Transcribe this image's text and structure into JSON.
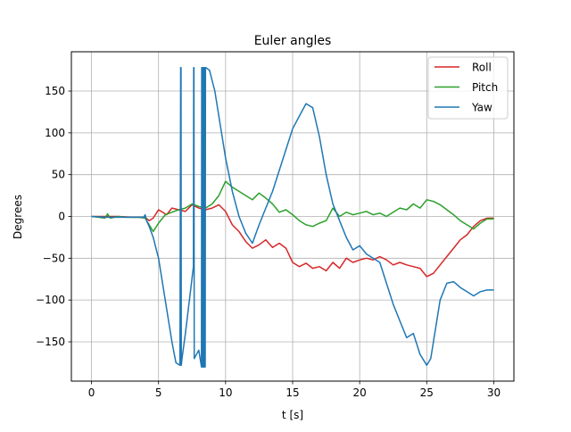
{
  "chart_data": {
    "type": "line",
    "title": "Euler angles",
    "xlabel": "t [s]",
    "ylabel": "Degrees",
    "xlim": [
      -1.5,
      31.5
    ],
    "ylim": [
      -197,
      197
    ],
    "xticks": [
      0,
      5,
      10,
      15,
      20,
      25,
      30
    ],
    "yticks": [
      -150,
      -100,
      -50,
      0,
      50,
      100,
      150
    ],
    "grid": true,
    "legend": "top-right",
    "series": [
      {
        "name": "Roll",
        "color": "#d62728",
        "x": [
          0,
          1,
          2,
          3,
          4,
          4.3,
          4.6,
          5,
          5.3,
          5.6,
          6,
          6.5,
          7,
          7.5,
          8,
          8.5,
          9,
          9.5,
          10,
          10.5,
          11,
          11.5,
          12,
          12.5,
          13,
          13.5,
          14,
          14.5,
          15,
          15.5,
          16,
          16.5,
          17,
          17.5,
          18,
          18.5,
          19,
          19.5,
          20,
          20.5,
          21,
          21.5,
          22,
          22.5,
          23,
          23.5,
          24,
          24.5,
          25,
          25.5,
          26,
          26.5,
          27,
          27.5,
          28,
          28.5,
          29,
          29.5,
          30
        ],
        "values": [
          0,
          0,
          0,
          -1,
          -1,
          -5,
          -2,
          8,
          5,
          2,
          10,
          8,
          6,
          14,
          10,
          8,
          10,
          14,
          6,
          -10,
          -18,
          -30,
          -38,
          -34,
          -28,
          -37,
          -32,
          -38,
          -55,
          -60,
          -56,
          -62,
          -60,
          -65,
          -55,
          -62,
          -50,
          -55,
          -52,
          -50,
          -52,
          -48,
          -52,
          -58,
          -55,
          -58,
          -60,
          -62,
          -72,
          -68,
          -58,
          -48,
          -38,
          -28,
          -22,
          -12,
          -5,
          -2,
          -2
        ]
      },
      {
        "name": "Pitch",
        "color": "#2ca02c",
        "x": [
          0,
          0.5,
          1,
          1.2,
          1.4,
          1.7,
          2,
          2.5,
          3,
          3.5,
          4,
          4.3,
          4.6,
          5,
          5.5,
          6,
          6.5,
          7,
          7.5,
          8,
          8.5,
          9,
          9.5,
          10,
          10.5,
          11,
          11.5,
          12,
          12.5,
          13,
          13.5,
          14,
          14.5,
          15,
          15.5,
          16,
          16.5,
          17,
          17.5,
          18,
          18.5,
          19,
          19.5,
          20,
          20.5,
          21,
          21.5,
          22,
          22.5,
          23,
          23.5,
          24,
          24.5,
          25,
          25.5,
          26,
          26.5,
          27,
          27.5,
          28,
          28.5,
          29,
          29.5,
          30
        ],
        "values": [
          0,
          -1,
          -2,
          3,
          -2,
          -1,
          0,
          -1,
          -1,
          -1,
          -2,
          -10,
          -18,
          -8,
          2,
          5,
          8,
          10,
          15,
          12,
          10,
          15,
          25,
          42,
          35,
          30,
          25,
          20,
          28,
          22,
          15,
          5,
          8,
          2,
          -5,
          -10,
          -12,
          -8,
          -5,
          10,
          0,
          5,
          2,
          4,
          6,
          2,
          4,
          0,
          5,
          10,
          8,
          15,
          10,
          20,
          18,
          14,
          8,
          2,
          -5,
          -10,
          -15,
          -8,
          -3,
          -3
        ]
      },
      {
        "name": "Yaw",
        "color": "#1f77b4",
        "x": [
          0,
          1,
          2,
          3,
          3.9,
          4,
          4.1,
          4.3,
          4.6,
          5,
          5.3,
          5.6,
          6,
          6.3,
          6.6,
          6.65,
          6.68,
          6.7,
          6.75,
          7,
          7.3,
          7.6,
          7.62,
          7.64,
          7.66,
          8,
          8.2,
          8.22,
          8.24,
          8.26,
          8.28,
          8.3,
          8.32,
          8.34,
          8.36,
          8.38,
          8.4,
          8.42,
          8.44,
          8.46,
          8.48,
          8.5,
          8.52,
          8.8,
          9.2,
          9.6,
          10,
          10.5,
          11,
          11.5,
          12,
          12.5,
          13,
          13.5,
          14,
          14.5,
          15,
          15.5,
          16,
          16.5,
          17,
          17.5,
          18,
          18.5,
          19,
          19.5,
          20,
          20.5,
          21,
          21.5,
          22,
          22.5,
          23,
          23.5,
          24,
          24.5,
          25,
          25.3,
          25.6,
          26,
          26.5,
          27,
          27.5,
          28,
          28.5,
          29,
          29.5,
          30
        ],
        "values": [
          0,
          -1,
          -1,
          -1,
          -1,
          2,
          -5,
          -12,
          -25,
          -50,
          -80,
          -110,
          -150,
          -175,
          -178,
          178,
          178,
          -178,
          -170,
          -140,
          -100,
          -60,
          178,
          178,
          -170,
          -160,
          -180,
          178,
          -180,
          178,
          -180,
          178,
          -180,
          178,
          -180,
          178,
          -180,
          178,
          -180,
          178,
          -180,
          178,
          178,
          175,
          150,
          110,
          70,
          30,
          0,
          -20,
          -32,
          -10,
          10,
          30,
          55,
          80,
          105,
          120,
          135,
          130,
          95,
          50,
          15,
          -5,
          -25,
          -40,
          -35,
          -45,
          -50,
          -55,
          -80,
          -105,
          -125,
          -145,
          -140,
          -165,
          -178,
          -170,
          -140,
          -100,
          -80,
          -78,
          -85,
          -90,
          -95,
          -90,
          -88,
          -88
        ]
      }
    ]
  }
}
